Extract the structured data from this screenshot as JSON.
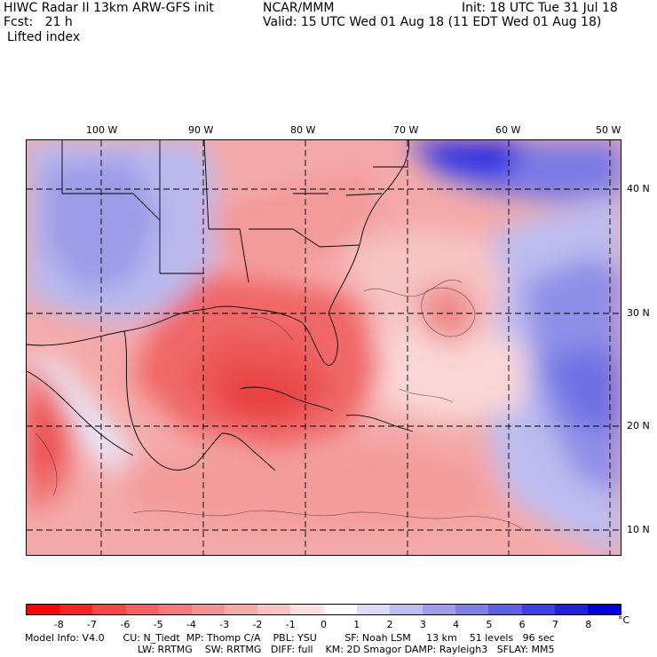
{
  "header": {
    "line1_left": "HIWC Radar II 13km ARW-GFS init",
    "line1_mid": "NCAR/MMM",
    "line1_right": "Init: 18 UTC Tue 31 Jul 18",
    "line2_left": "Fcst:   21 h",
    "line2_right": "Valid: 15 UTC Wed 01 Aug 18 (11 EDT Wed 01 Aug 18)",
    "field": "Lifted index"
  },
  "map": {
    "longitude_labels": [
      "100 W",
      "90 W",
      "80 W",
      "70 W",
      "60 W",
      "50 W"
    ],
    "latitude_labels": [
      "40 N",
      "30 N",
      "20 N",
      "10 N"
    ]
  },
  "colorbar": {
    "unit": "°C",
    "ticks": [
      "-8",
      "-7",
      "-6",
      "-5",
      "-4",
      "-3",
      "-2",
      "-1",
      "0",
      "1",
      "2",
      "3",
      "4",
      "5",
      "6",
      "7",
      "8"
    ],
    "colors": [
      "#ff0000",
      "#ff2222",
      "#fa4545",
      "#f56262",
      "#f27a7a",
      "#f39292",
      "#f5aaaa",
      "#f8c4c4",
      "#fde0e0",
      "#ffffff",
      "#dcdcf6",
      "#bebef0",
      "#9e9eea",
      "#7f7fe6",
      "#6060e2",
      "#4040e0",
      "#2020e0",
      "#0000dc"
    ]
  },
  "footer": {
    "line1": "Model Info: V4.0      CU: N_Tiedt  MP: Thomp C/A    PBL: YSU         SF: Noah LSM     13 km    51 levels   96 sec",
    "line2": "LW: RRTMG    SW: RRTMG   DIFF: full    KM: 2D Smagor DAMP: Rayleigh3   SFLAY: MM5"
  }
}
